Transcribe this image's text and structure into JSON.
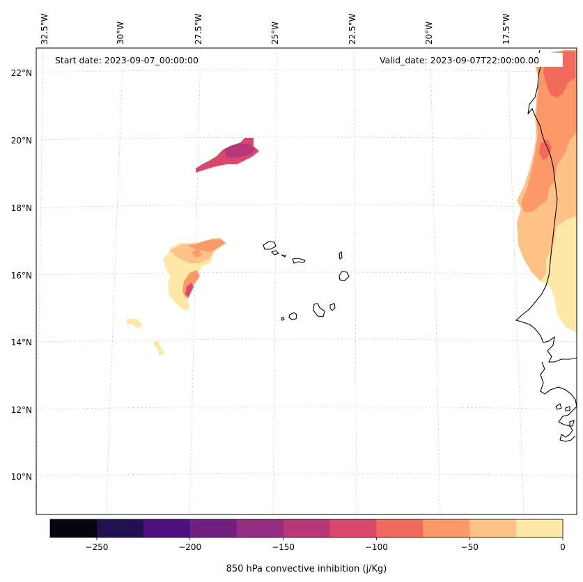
{
  "map": {
    "start_date": "Start date: 2023-09-07_00:00:00",
    "valid_date": "Valid_date: 2023-09-07T22:00:00.00",
    "lon_labels": [
      "32.5°W",
      "30°W",
      "27.5°W",
      "25°W",
      "22.5°W",
      "20°W",
      "17.5°W"
    ],
    "lat_labels": [
      "22°N",
      "20°N",
      "18°N",
      "16°N",
      "14°N",
      "12°N",
      "10°N"
    ],
    "gridlines": true
  },
  "colorbar": {
    "label": "850 hPa convective inhibition (j/Kg)",
    "tick_labels": [
      "−250",
      "−200",
      "−150",
      "−100",
      "−50",
      "0"
    ],
    "range": [
      -275,
      0
    ],
    "colors": [
      "#05040f",
      "#221150",
      "#4d107e",
      "#711f81",
      "#942c80",
      "#b73779",
      "#db476a",
      "#f26a5b",
      "#fd9868",
      "#fec287",
      "#fde8a7"
    ]
  }
}
